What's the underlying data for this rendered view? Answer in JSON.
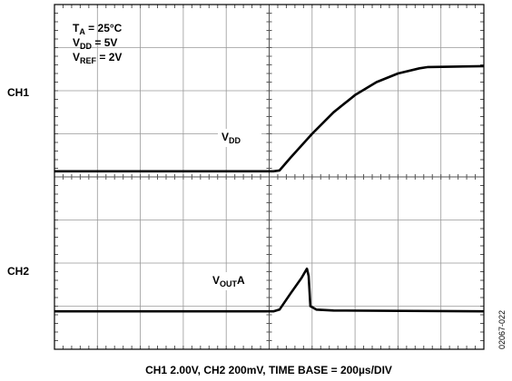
{
  "chart_data": {
    "type": "line",
    "xlim": [
      0,
      10
    ],
    "ylim": [
      0,
      8
    ],
    "xticks": [
      0,
      1,
      2,
      3,
      4,
      5,
      6,
      7,
      8,
      9,
      10
    ],
    "yticks": [
      0,
      1,
      2,
      3,
      4,
      5,
      6,
      7,
      8
    ],
    "grid": true,
    "channel_labels": [
      "CH1",
      "CH2"
    ],
    "conditions": [
      [
        "T",
        "A",
        " = 25°C"
      ],
      [
        "V",
        "DD",
        " = 5V"
      ],
      [
        "V",
        "REF",
        " = 2V"
      ]
    ],
    "series": [
      {
        "name": [
          "V",
          "DD"
        ],
        "color": "#000000",
        "x": [
          0,
          5.1,
          5.24,
          5.5,
          6,
          6.5,
          7,
          7.5,
          8,
          8.5,
          8.7,
          10
        ],
        "values": [
          4.13,
          4.13,
          4.15,
          4.45,
          5.0,
          5.5,
          5.9,
          6.2,
          6.4,
          6.52,
          6.55,
          6.57
        ]
      },
      {
        "name": [
          "V",
          "OUT",
          "A"
        ],
        "color": "#000000",
        "x": [
          0,
          5.1,
          5.24,
          5.5,
          5.75,
          5.88,
          5.92,
          5.96,
          6.1,
          6.5,
          10
        ],
        "values": [
          0.88,
          0.88,
          0.92,
          1.3,
          1.65,
          1.87,
          1.7,
          1.0,
          0.92,
          0.9,
          0.88
        ]
      }
    ],
    "caption": "CH1 2.00V, CH2 200mV, TIME BASE = 200µs/DIV",
    "figure_code": "02067-022"
  }
}
